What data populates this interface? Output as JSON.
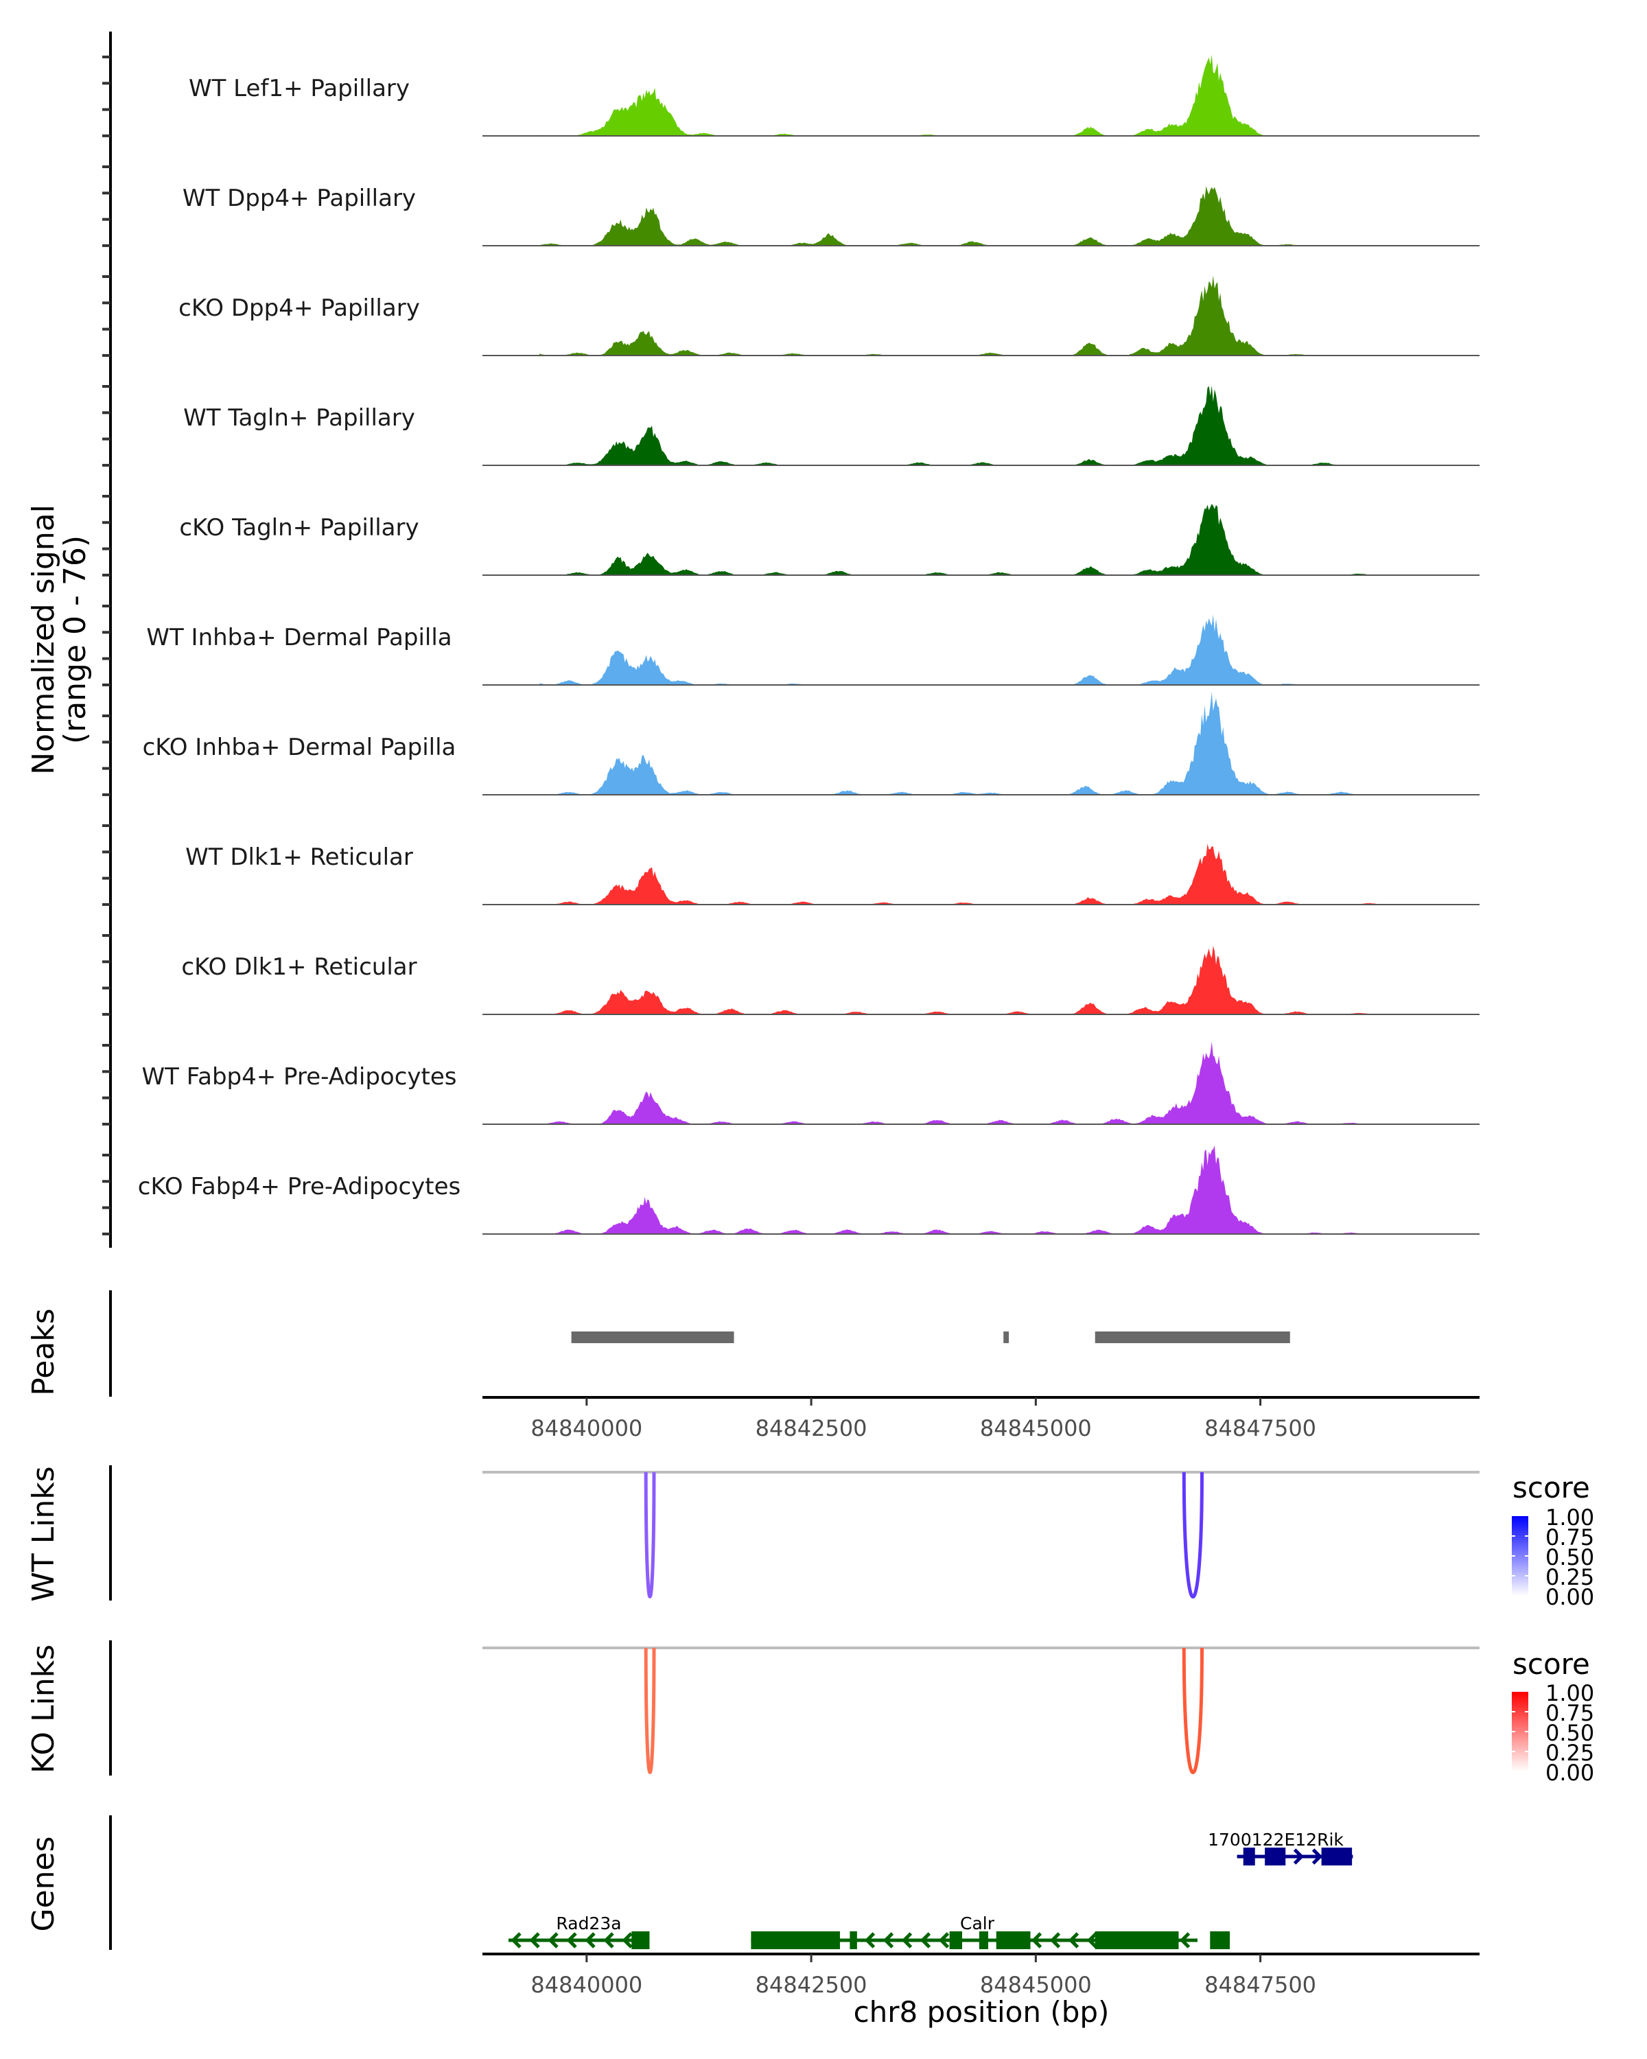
{
  "chart_data": {
    "type": "area",
    "title": "",
    "ylabel": "Normalized signal\n(range 0 - 76)",
    "ylabel_lines": [
      "Normalized signal",
      "(range 0 - 76)"
    ],
    "ylim": [
      0,
      76
    ],
    "xlabel": "chr8 position (bp)",
    "xlim": [
      84838840,
      84849940
    ],
    "x_ticks": [
      84840000,
      84842500,
      84845000,
      84847500
    ],
    "x_tick_labels": [
      "84840000",
      "84842500",
      "84845000",
      "84847500"
    ],
    "coverage_tracks": [
      {
        "name": "WT Lef1+ Papillary",
        "color": "#66CD00",
        "peaks": [
          [
            84839400,
            1
          ],
          [
            84840050,
            3
          ],
          [
            84840350,
            18
          ],
          [
            84840700,
            33
          ],
          [
            84840950,
            5
          ],
          [
            84841300,
            2
          ],
          [
            84842200,
            1.5
          ],
          [
            84843800,
            1
          ],
          [
            84845600,
            6
          ],
          [
            84846250,
            5
          ],
          [
            84846500,
            8
          ],
          [
            84846950,
            52
          ],
          [
            84847350,
            7
          ]
        ]
      },
      {
        "name": "WT Dpp4+ Papillary",
        "color": "#458B00",
        "peaks": [
          [
            84839200,
            3
          ],
          [
            84839600,
            1.5
          ],
          [
            84840350,
            17
          ],
          [
            84840700,
            26
          ],
          [
            84841200,
            5
          ],
          [
            84841550,
            3
          ],
          [
            84842400,
            2
          ],
          [
            84842700,
            8
          ],
          [
            84843600,
            2
          ],
          [
            84844300,
            3
          ],
          [
            84845600,
            6
          ],
          [
            84846250,
            5
          ],
          [
            84846500,
            8
          ],
          [
            84846950,
            41
          ],
          [
            84847350,
            7
          ],
          [
            84847800,
            1
          ]
        ]
      },
      {
        "name": "cKO Dpp4+ Papillary",
        "color": "#458B00",
        "peaks": [
          [
            84839400,
            2
          ],
          [
            84839900,
            2
          ],
          [
            84840350,
            10
          ],
          [
            84840650,
            17
          ],
          [
            84841100,
            4
          ],
          [
            84841600,
            2
          ],
          [
            84842300,
            1.5
          ],
          [
            84843200,
            1
          ],
          [
            84844500,
            2
          ],
          [
            84845600,
            9
          ],
          [
            84846200,
            5
          ],
          [
            84846500,
            8
          ],
          [
            84846950,
            53
          ],
          [
            84847350,
            8
          ],
          [
            84847900,
            1
          ]
        ]
      },
      {
        "name": "WT Tagln+ Papillary",
        "color": "#006400",
        "peaks": [
          [
            84839200,
            3
          ],
          [
            84839900,
            2
          ],
          [
            84840350,
            17
          ],
          [
            84840700,
            26
          ],
          [
            84841100,
            3
          ],
          [
            84841500,
            3
          ],
          [
            84842000,
            2
          ],
          [
            84843700,
            2
          ],
          [
            84844400,
            2
          ],
          [
            84845600,
            4
          ],
          [
            84846250,
            4
          ],
          [
            84846500,
            7
          ],
          [
            84846950,
            51
          ],
          [
            84847400,
            5
          ],
          [
            84848200,
            2
          ]
        ]
      },
      {
        "name": "cKO Tagln+ Papillary",
        "color": "#006400",
        "peaks": [
          [
            84839200,
            2
          ],
          [
            84839900,
            2
          ],
          [
            84840350,
            12
          ],
          [
            84840700,
            15
          ],
          [
            84841100,
            4
          ],
          [
            84841500,
            3
          ],
          [
            84842100,
            2
          ],
          [
            84842800,
            3
          ],
          [
            84843900,
            2
          ],
          [
            84844600,
            2
          ],
          [
            84845600,
            6
          ],
          [
            84846250,
            4
          ],
          [
            84846500,
            6
          ],
          [
            84846950,
            50
          ],
          [
            84847350,
            6
          ],
          [
            84848600,
            1
          ]
        ]
      },
      {
        "name": "WT Inhba+ Dermal Papilla",
        "color": "#5CACEE",
        "peaks": [
          [
            84839400,
            2
          ],
          [
            84839800,
            3
          ],
          [
            84840350,
            23
          ],
          [
            84840700,
            20
          ],
          [
            84841050,
            3
          ],
          [
            84841500,
            1
          ],
          [
            84842300,
            1
          ],
          [
            84845600,
            7
          ],
          [
            84846300,
            3
          ],
          [
            84846550,
            10
          ],
          [
            84846950,
            46
          ],
          [
            84847350,
            7
          ],
          [
            84847800,
            1
          ]
        ]
      },
      {
        "name": "cKO Inhba+ Dermal Papilla",
        "color": "#5CACEE",
        "peaks": [
          [
            84839800,
            2
          ],
          [
            84840350,
            24
          ],
          [
            84840650,
            25
          ],
          [
            84841100,
            3
          ],
          [
            84841500,
            2
          ],
          [
            84842900,
            3
          ],
          [
            84843500,
            2
          ],
          [
            84844200,
            2
          ],
          [
            84844500,
            1.5
          ],
          [
            84845550,
            6
          ],
          [
            84846000,
            3
          ],
          [
            84846500,
            9
          ],
          [
            84846950,
            66
          ],
          [
            84847400,
            8
          ],
          [
            84847800,
            2
          ],
          [
            84848400,
            2
          ]
        ]
      },
      {
        "name": "WT Dlk1+ Reticular",
        "color": "#FF3030",
        "peaks": [
          [
            84839300,
            2
          ],
          [
            84839800,
            2
          ],
          [
            84840350,
            13
          ],
          [
            84840700,
            25
          ],
          [
            84841100,
            3
          ],
          [
            84841700,
            2
          ],
          [
            84842400,
            2
          ],
          [
            84843300,
            1.5
          ],
          [
            84844200,
            1.5
          ],
          [
            84845600,
            5
          ],
          [
            84846250,
            4
          ],
          [
            84846500,
            6
          ],
          [
            84846950,
            41
          ],
          [
            84847350,
            7
          ],
          [
            84847800,
            2
          ],
          [
            84848700,
            1
          ]
        ]
      },
      {
        "name": "cKO Dlk1+ Reticular",
        "color": "#FF3030",
        "peaks": [
          [
            84839300,
            3
          ],
          [
            84839800,
            3
          ],
          [
            84840350,
            17
          ],
          [
            84840700,
            17
          ],
          [
            84841100,
            5
          ],
          [
            84841600,
            4
          ],
          [
            84842200,
            3
          ],
          [
            84843000,
            2
          ],
          [
            84843900,
            2
          ],
          [
            84844800,
            2
          ],
          [
            84845600,
            8
          ],
          [
            84846200,
            5
          ],
          [
            84846500,
            9
          ],
          [
            84846950,
            44
          ],
          [
            84847350,
            8
          ],
          [
            84847900,
            2
          ],
          [
            84848600,
            1
          ]
        ]
      },
      {
        "name": "WT Fabp4+ Pre-Adipocytes",
        "color": "#B23AEE",
        "peaks": [
          [
            84839300,
            2
          ],
          [
            84839700,
            2
          ],
          [
            84840350,
            11
          ],
          [
            84840700,
            22
          ],
          [
            84841000,
            4
          ],
          [
            84841500,
            2
          ],
          [
            84842300,
            2
          ],
          [
            84843200,
            2
          ],
          [
            84843900,
            3
          ],
          [
            84844600,
            3
          ],
          [
            84845300,
            3
          ],
          [
            84845900,
            4
          ],
          [
            84846300,
            6
          ],
          [
            84846550,
            12
          ],
          [
            84846950,
            53
          ],
          [
            84847400,
            5
          ],
          [
            84847900,
            2
          ],
          [
            84848500,
            1
          ]
        ]
      },
      {
        "name": "cKO Fabp4+ Pre-Adipocytes",
        "color": "#B23AEE",
        "peaks": [
          [
            84839800,
            3
          ],
          [
            84840350,
            8
          ],
          [
            84840650,
            24
          ],
          [
            84841000,
            5
          ],
          [
            84841400,
            3
          ],
          [
            84841800,
            4
          ],
          [
            84842300,
            3
          ],
          [
            84842900,
            3
          ],
          [
            84843400,
            2
          ],
          [
            84843900,
            3
          ],
          [
            84844500,
            2
          ],
          [
            84845100,
            2
          ],
          [
            84845700,
            3
          ],
          [
            84846250,
            6
          ],
          [
            84846550,
            12
          ],
          [
            84846950,
            59
          ],
          [
            84847350,
            6
          ],
          [
            84848100,
            1
          ],
          [
            84848500,
            1
          ]
        ]
      }
    ],
    "peaks_track": {
      "label": "Peaks",
      "color": "#696969",
      "regions": [
        [
          84839830,
          84841640
        ],
        [
          84844640,
          84844700
        ],
        [
          84845660,
          84847830
        ]
      ]
    },
    "link_tracks": [
      {
        "label": "WT Links",
        "legend_title": "score",
        "color_low": "#FFFFFF",
        "color_high": "#0000FF",
        "links": [
          {
            "start": 84840660,
            "end": 84840750,
            "score": 0.62,
            "color": "#8B5CFF"
          },
          {
            "start": 84846650,
            "end": 84846850,
            "score": 0.8,
            "color": "#6039FF"
          }
        ]
      },
      {
        "label": "KO Links",
        "legend_title": "score",
        "color_low": "#FFFFFF",
        "color_high": "#FF0000",
        "links": [
          {
            "start": 84840660,
            "end": 84840750,
            "score": 0.62,
            "color": "#FF7250"
          },
          {
            "start": 84846650,
            "end": 84846850,
            "score": 0.75,
            "color": "#FF5A38"
          }
        ]
      }
    ],
    "legend_ticks": [
      "1.00",
      "0.75",
      "0.50",
      "0.25",
      "0.00"
    ],
    "genes_track": {
      "label": "Genes",
      "genes": [
        {
          "name": "Rad23a",
          "strand": "-",
          "color": "#006400",
          "row": 1,
          "start": 84839130,
          "end": 84840700,
          "exons": [
            [
              84840500,
              84840700
            ]
          ]
        },
        {
          "name": "Calr",
          "strand": "-",
          "color": "#006400",
          "row": 1,
          "start": 84841830,
          "end": 84846800,
          "exons": [
            [
              84841830,
              84842820
            ],
            [
              84842930,
              84843010
            ],
            [
              84844040,
              84844180
            ],
            [
              84844370,
              84844470
            ],
            [
              84844560,
              84844940
            ],
            [
              84845660,
              84846590
            ],
            [
              84846940,
              84847160
            ]
          ]
        },
        {
          "name": "1700122E12Rik",
          "strand": "+",
          "color": "#00008B",
          "row": 0,
          "start": 84847240,
          "end": 84848530,
          "exons": [
            [
              84847310,
              84847440
            ],
            [
              84847550,
              84847780
            ],
            [
              84848180,
              84848520
            ]
          ]
        }
      ]
    }
  }
}
